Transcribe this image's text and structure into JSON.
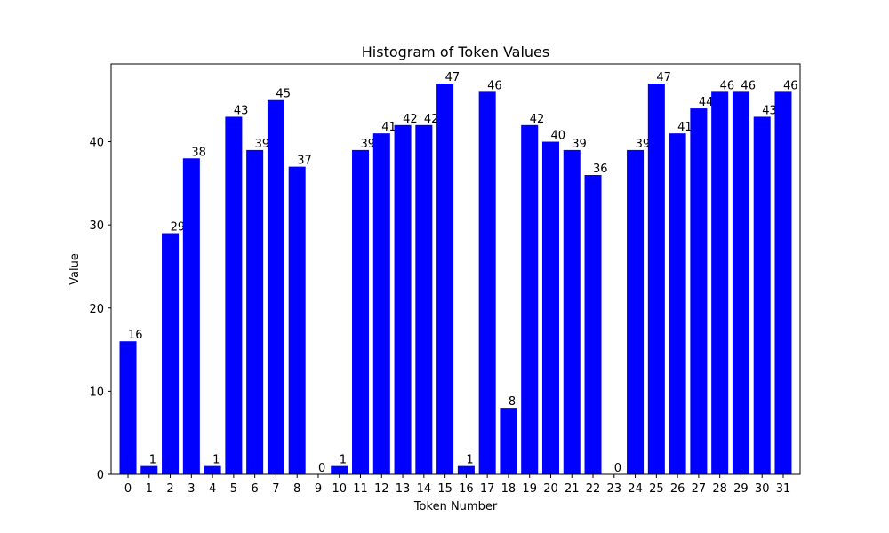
{
  "chart_data": {
    "type": "bar",
    "title": "Histogram of Token Values",
    "xlabel": "Token Number",
    "ylabel": "Value",
    "categories": [
      "0",
      "1",
      "2",
      "3",
      "4",
      "5",
      "6",
      "7",
      "8",
      "9",
      "10",
      "11",
      "12",
      "13",
      "14",
      "15",
      "16",
      "17",
      "18",
      "19",
      "20",
      "21",
      "22",
      "23",
      "24",
      "25",
      "26",
      "27",
      "28",
      "29",
      "30",
      "31"
    ],
    "values": [
      16,
      1,
      29,
      38,
      1,
      43,
      39,
      45,
      37,
      0,
      1,
      39,
      41,
      42,
      42,
      47,
      1,
      46,
      8,
      42,
      40,
      39,
      36,
      0,
      39,
      47,
      41,
      44,
      46,
      46,
      43,
      46
    ],
    "ylim": [
      0,
      49.35
    ],
    "yticks": [
      0,
      10,
      20,
      30,
      40
    ],
    "bar_color": "#0000ff",
    "grid": false,
    "data_labels": true
  }
}
